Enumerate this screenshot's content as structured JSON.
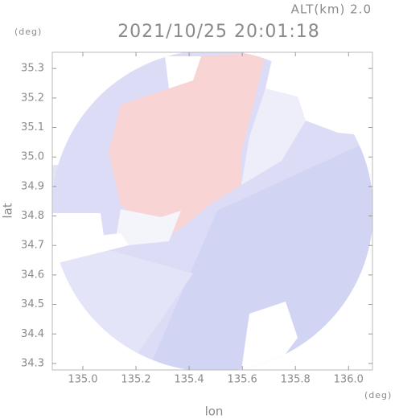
{
  "chart_data": {
    "type": "radar-map",
    "title": "2021/10/25 20:01:18",
    "subtitle": "ALT(km) 2.0",
    "x_label": "lon",
    "y_label": "lat",
    "x_unit": "(deg)",
    "y_unit": "(deg)",
    "xlim": [
      134.885,
      136.09
    ],
    "ylim": [
      34.278,
      35.355
    ],
    "xticks": [
      {
        "value": 135.0,
        "label": "135.0"
      },
      135.2,
      135.4,
      135.6,
      135.8,
      {
        "value": 136.0,
        "label": "136.0"
      }
    ],
    "yticks": [
      34.3,
      34.4,
      34.5,
      34.6,
      34.7,
      34.8,
      34.9,
      {
        "value": 35.0,
        "label": "35.0"
      },
      35.1,
      35.2,
      35.3
    ],
    "grid": false
  }
}
